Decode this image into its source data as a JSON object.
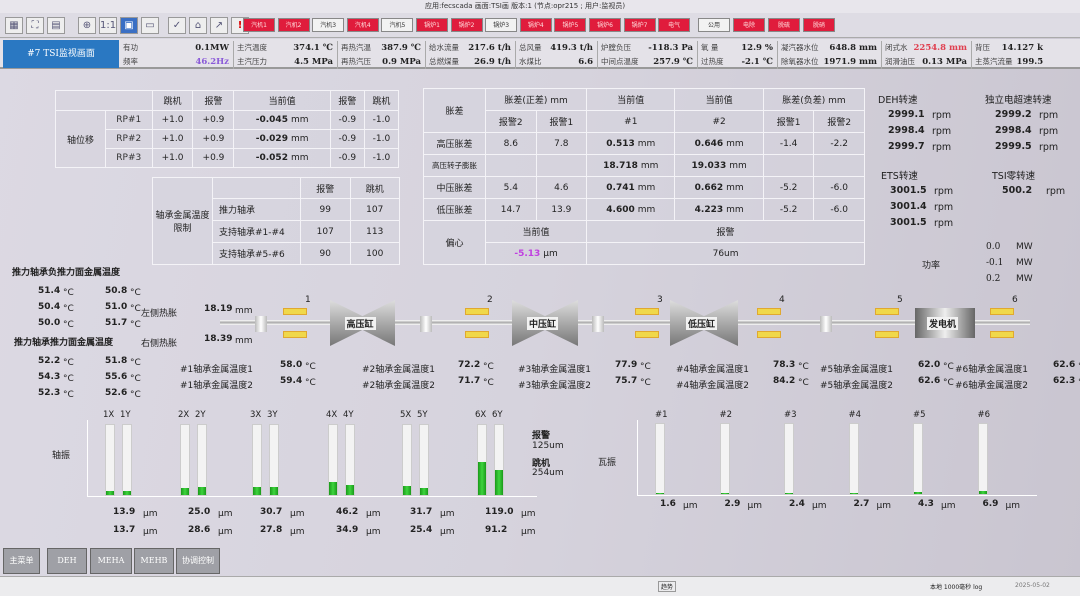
{
  "titlebar": {
    "text": "应用:fecscada  画面:TSI画  版本:1 (节点:opr215 ; 用户:监视员)"
  },
  "toolbar": {
    "icons": [
      "grid-icon",
      "fit-icon",
      "print-icon",
      "zoom-in-icon",
      "actual-size-icon",
      "save-icon",
      "minus-icon",
      "check-icon",
      "home-icon",
      "trend-icon",
      "alarm-icon"
    ],
    "icon_glyphs": [
      "▦",
      "⛶",
      "▤",
      "⊕",
      "1:1",
      "▣",
      "▭",
      "✓",
      "⌂",
      "↗",
      "!"
    ],
    "system_buttons": [
      {
        "label": "汽机1",
        "state": "red"
      },
      {
        "label": "汽机2",
        "state": "red"
      },
      {
        "label": "汽机3",
        "state": "white"
      },
      {
        "label": "汽机4",
        "state": "red"
      },
      {
        "label": "汽机5",
        "state": "white"
      },
      {
        "label": "锅炉1",
        "state": "red"
      },
      {
        "label": "锅炉2",
        "state": "red"
      },
      {
        "label": "锅炉3",
        "state": "white"
      },
      {
        "label": "锅炉4",
        "state": "red"
      },
      {
        "label": "锅炉5",
        "state": "red"
      },
      {
        "label": "锅炉6",
        "state": "red"
      },
      {
        "label": "锅炉7",
        "state": "red"
      },
      {
        "label": "电气",
        "state": "red"
      },
      {
        "label": "公用",
        "state": "white"
      },
      {
        "label": "电除",
        "state": "red"
      },
      {
        "label": "脱硫",
        "state": "red"
      },
      {
        "label": "脱硝",
        "state": "red"
      }
    ]
  },
  "screen_title": "#7 TSI监视画面",
  "infobar": [
    {
      "label": "有功",
      "value": "0.1MW"
    },
    {
      "label": "频率",
      "value": "46.2Hz",
      "color": "#8a5ad8"
    },
    {
      "label": "主汽温度",
      "value": "374.1 ℃"
    },
    {
      "label": "主汽压力",
      "value": "4.5 MPa"
    },
    {
      "label": "再热汽温",
      "value": "387.9 ℃"
    },
    {
      "label": "再热汽压",
      "value": "0.9 MPa"
    },
    {
      "label": "给水流量",
      "value": "217.6 t/h"
    },
    {
      "label": "总燃煤量",
      "value": "26.9 t/h"
    },
    {
      "label": "总风量",
      "value": "419.3 t/h"
    },
    {
      "label": "水煤比",
      "value": "6.6"
    },
    {
      "label": "炉膛负压",
      "value": "-118.3 Pa"
    },
    {
      "label": "中间点温度",
      "value": "257.9 ℃"
    },
    {
      "label": "氧 量",
      "value": "12.9 %"
    },
    {
      "label": "过热度",
      "value": "-2.1 ℃"
    },
    {
      "label": "凝汽器水位",
      "value": "648.8 mm"
    },
    {
      "label": "除氧器水位",
      "value": "1971.9 mm"
    },
    {
      "label": "闭式水",
      "value": "2254.8 mm",
      "color": "#e04050"
    },
    {
      "label": "润滑油压",
      "value": "0.13 MPa"
    },
    {
      "label": "背压",
      "value": "14.127 k"
    },
    {
      "label": "主蒸汽流量",
      "value": "199.5"
    }
  ],
  "axial": {
    "title": "轴位移",
    "headers": [
      "跳机",
      "报警",
      "当前值",
      "报警",
      "跳机"
    ],
    "rows": [
      {
        "name": "RP#1",
        "trip_pos": "+1.0",
        "alarm_pos": "+0.9",
        "value": "-0.045",
        "unit": "mm",
        "alarm_neg": "-0.9",
        "trip_neg": "-1.0"
      },
      {
        "name": "RP#2",
        "trip_pos": "+1.0",
        "alarm_pos": "+0.9",
        "value": "-0.029",
        "unit": "mm",
        "alarm_neg": "-0.9",
        "trip_neg": "-1.0"
      },
      {
        "name": "RP#3",
        "trip_pos": "+1.0",
        "alarm_pos": "+0.9",
        "value": "-0.052",
        "unit": "mm",
        "alarm_neg": "-0.9",
        "trip_neg": "-1.0"
      }
    ]
  },
  "limits": {
    "title": "轴承金属温度限制",
    "headers": [
      "报警",
      "跳机"
    ],
    "rows": [
      {
        "name": "推力轴承",
        "alarm": "99",
        "trip": "107"
      },
      {
        "name": "支持轴承#1-#4",
        "alarm": "107",
        "trip": "113"
      },
      {
        "name": "支持轴承#5-#6",
        "alarm": "90",
        "trip": "100"
      }
    ]
  },
  "expansion": {
    "title": "胀差",
    "pos_header": "胀差(正差) mm",
    "cur1_header": "当前值",
    "cur2_header": "当前值",
    "neg_header": "胀差(负差) mm",
    "sub": [
      "报警2",
      "报警1",
      "#1",
      "#2",
      "报警1",
      "报警2"
    ],
    "rows": [
      {
        "name": "高压胀差",
        "a2": "8.6",
        "a1": "7.8",
        "v1": "0.513",
        "v2": "0.646",
        "n1": "-1.4",
        "n2": "-2.2"
      },
      {
        "name": "高压转子膨胀",
        "a2": "",
        "a1": "",
        "v1": "18.718",
        "v2": "19.033",
        "n1": "",
        "n2": ""
      },
      {
        "name": "中压胀差",
        "a2": "5.4",
        "a1": "4.6",
        "v1": "0.741",
        "v2": "0.662",
        "n1": "-5.2",
        "n2": "-6.0"
      },
      {
        "name": "低压胀差",
        "a2": "14.7",
        "a1": "13.9",
        "v1": "4.600",
        "v2": "4.223",
        "n1": "-5.2",
        "n2": "-6.0"
      }
    ],
    "unit": "mm",
    "ecc": {
      "title": "偏心",
      "cur_header": "当前值",
      "alarm_header": "报警",
      "value": "-5.13",
      "unit": "μm",
      "alarm": "76um"
    }
  },
  "speeds": {
    "deh": {
      "title": "DEH转速",
      "values": [
        "2999.1",
        "2998.4",
        "2999.7"
      ]
    },
    "indep": {
      "title": "独立电超速转速",
      "values": [
        "2999.2",
        "2998.4",
        "2999.5"
      ]
    },
    "ets": {
      "title": "ETS转速",
      "values": [
        "3001.5",
        "3001.4",
        "3001.5"
      ]
    },
    "tsi_zero": {
      "title": "TSI零转速",
      "values": [
        "500.2"
      ]
    },
    "unit": "rpm",
    "power": {
      "title": "功率",
      "values": [
        "0.0",
        "-0.1",
        "0.2"
      ],
      "unit": "MW"
    }
  },
  "thrust": {
    "neg_title": "推力轴承负推力面金属温度",
    "neg": [
      "51.4",
      "50.8",
      "50.4",
      "51.0",
      "50.0",
      "51.7"
    ],
    "pos_title": "推力轴承推力面金属温度",
    "pos": [
      "52.2",
      "51.8",
      "54.3",
      "55.6",
      "52.3",
      "52.6"
    ],
    "unit": "°C",
    "left_exp_label": "左侧热胀",
    "left_exp": "18.19",
    "right_exp_label": "右侧热胀",
    "right_exp": "18.39",
    "exp_unit": "mm"
  },
  "train": {
    "casings": [
      "高压缸",
      "中压缸",
      "低压缸",
      "发电机"
    ],
    "bearing_numbers": [
      "1",
      "2",
      "3",
      "4",
      "5",
      "6"
    ],
    "bearing_temps": [
      {
        "l1": "#1轴承金属温度1",
        "v1": "58.0",
        "l2": "#1轴承金属温度2",
        "v2": "59.4"
      },
      {
        "l1": "#2轴承金属温度1",
        "v1": "72.2",
        "l2": "#2轴承金属温度2",
        "v2": "71.7"
      },
      {
        "l1": "#3轴承金属温度1",
        "v1": "77.9",
        "l2": "#3轴承金属温度2",
        "v2": "75.7"
      },
      {
        "l1": "#4轴承金属温度1",
        "v1": "78.3",
        "l2": "#4轴承金属温度2",
        "v2": "84.2"
      },
      {
        "l1": "#5轴承金属温度1",
        "v1": "62.0",
        "l2": "#5轴承金属温度2",
        "v2": "62.6"
      },
      {
        "l1": "#6轴承金属温度1",
        "v1": "62.6",
        "l2": "#6轴承金属温度2",
        "v2": "62.3"
      }
    ],
    "unit": "°C"
  },
  "shaft_vib": {
    "title": "轴振",
    "unit": "μm",
    "alarm_label": "报警",
    "alarm": "125um",
    "trip_label": "跳机",
    "trip": "254um",
    "pairs": [
      {
        "x": "1X",
        "y": "1Y",
        "xv": 13.9,
        "yv": 13.7
      },
      {
        "x": "2X",
        "y": "2Y",
        "xv": 25.0,
        "yv": 28.6
      },
      {
        "x": "3X",
        "y": "3Y",
        "xv": 30.7,
        "yv": 27.8
      },
      {
        "x": "4X",
        "y": "4Y",
        "xv": 46.2,
        "yv": 34.9
      },
      {
        "x": "5X",
        "y": "5Y",
        "xv": 31.7,
        "yv": 25.4
      },
      {
        "x": "6X",
        "y": "6Y",
        "xv": 119.0,
        "yv": 91.2
      }
    ],
    "accent": "#22b022"
  },
  "bearing_vib": {
    "title": "瓦振",
    "unit": "μm",
    "items": [
      {
        "n": "#1",
        "v": 1.6
      },
      {
        "n": "#2",
        "v": 2.9
      },
      {
        "n": "#3",
        "v": 2.4
      },
      {
        "n": "#4",
        "v": 2.7
      },
      {
        "n": "#5",
        "v": 4.3
      },
      {
        "n": "#6",
        "v": 6.9
      }
    ]
  },
  "bottom_buttons": [
    "主菜单",
    "DEH",
    "MEHA",
    "MEHB",
    "协调控制"
  ],
  "statusbar": {
    "center": "趋势",
    "right": "本地 1000毫秒 log",
    "clock": "2025-05-02"
  }
}
